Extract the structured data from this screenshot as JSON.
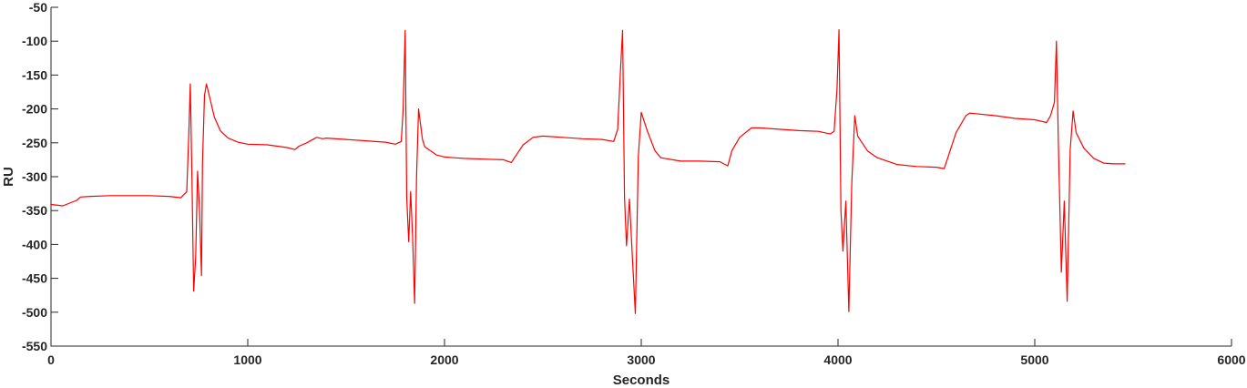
{
  "chart_data": {
    "type": "line",
    "xlabel": "Seconds",
    "ylabel": "RU",
    "xlim": [
      0,
      6000
    ],
    "ylim": [
      -550,
      -50
    ],
    "xticks": [
      0,
      1000,
      2000,
      3000,
      4000,
      5000,
      6000
    ],
    "yticks": [
      -50,
      -100,
      -150,
      -200,
      -250,
      -300,
      -350,
      -400,
      -450,
      -500,
      -550
    ],
    "xtick_labels": [
      "0",
      "1000",
      "2000",
      "3000",
      "4000",
      "5000",
      "6000"
    ],
    "ytick_labels": [
      "-50",
      "-100",
      "-150",
      "-200",
      "-250",
      "-300",
      "-350",
      "-400",
      "-450",
      "-500",
      "-550"
    ],
    "grid": false,
    "legend": "none",
    "series": [
      {
        "color": "#ff0000",
        "x": [
          0,
          60,
          130,
          150,
          200,
          300,
          400,
          500,
          600,
          660,
          690,
          700,
          708,
          716,
          725,
          735,
          745,
          755,
          765,
          770,
          780,
          790,
          800,
          830,
          860,
          900,
          950,
          1000,
          1100,
          1200,
          1240,
          1260,
          1300,
          1350,
          1380,
          1400,
          1500,
          1600,
          1700,
          1750,
          1780,
          1790,
          1800,
          1808,
          1818,
          1828,
          1838,
          1848,
          1858,
          1868,
          1878,
          1888,
          1900,
          1930,
          1960,
          2000,
          2050,
          2100,
          2200,
          2300,
          2340,
          2360,
          2400,
          2450,
          2500,
          2600,
          2700,
          2800,
          2860,
          2880,
          2895,
          2905,
          2915,
          2925,
          2940,
          2955,
          2970,
          2985,
          3000,
          3030,
          3070,
          3100,
          3200,
          3300,
          3400,
          3440,
          3460,
          3500,
          3560,
          3600,
          3700,
          3800,
          3900,
          3960,
          3980,
          3995,
          4005,
          4015,
          4025,
          4040,
          4055,
          4070,
          4085,
          4100,
          4150,
          4200,
          4300,
          4400,
          4500,
          4540,
          4560,
          4600,
          4650,
          4670,
          4700,
          4800,
          4900,
          5000,
          5060,
          5080,
          5100,
          5110,
          5120,
          5135,
          5150,
          5165,
          5180,
          5195,
          5210,
          5250,
          5300,
          5350,
          5400,
          5460
        ],
        "y": [
          -341,
          -343,
          -335,
          -330,
          -329,
          -328,
          -328,
          -328,
          -329,
          -331,
          -322,
          -240,
          -163,
          -300,
          -469,
          -420,
          -292,
          -350,
          -446,
          -280,
          -180,
          -163,
          -175,
          -212,
          -232,
          -243,
          -249,
          -252,
          -253,
          -257,
          -260,
          -255,
          -250,
          -242,
          -244,
          -243,
          -245,
          -247,
          -249,
          -252,
          -248,
          -200,
          -84,
          -330,
          -396,
          -322,
          -390,
          -487,
          -300,
          -200,
          -222,
          -245,
          -256,
          -262,
          -268,
          -271,
          -272,
          -273,
          -274,
          -275,
          -279,
          -270,
          -253,
          -242,
          -240,
          -242,
          -244,
          -245,
          -248,
          -230,
          -140,
          -84,
          -330,
          -402,
          -333,
          -420,
          -502,
          -270,
          -205,
          -232,
          -262,
          -272,
          -277,
          -277,
          -278,
          -284,
          -262,
          -242,
          -228,
          -228,
          -230,
          -232,
          -233,
          -237,
          -233,
          -170,
          -83,
          -350,
          -410,
          -336,
          -499,
          -310,
          -210,
          -240,
          -262,
          -272,
          -282,
          -285,
          -286,
          -288,
          -270,
          -235,
          -210,
          -206,
          -207,
          -210,
          -214,
          -216,
          -220,
          -210,
          -190,
          -100,
          -250,
          -441,
          -336,
          -484,
          -260,
          -203,
          -235,
          -258,
          -273,
          -280,
          -281,
          -281
        ]
      }
    ]
  }
}
